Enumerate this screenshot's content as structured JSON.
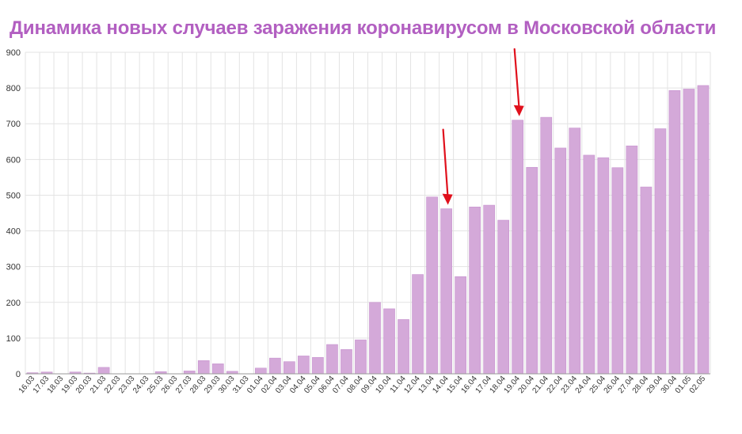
{
  "title": "Динамика новых случаев заражения коронавирусом в Московской области",
  "colors": {
    "title": "#b25fc1",
    "bar": "#d4a9d9",
    "bar_stroke": "#c793cf",
    "arrow": "#e0101c",
    "grid": "#e3e3e3",
    "axis": "#999999"
  },
  "chart_data": {
    "type": "bar",
    "title": "Динамика новых случаев заражения коронавирусом в Московской области",
    "xlabel": "",
    "ylabel": "",
    "ylim": [
      0,
      900
    ],
    "yticks": [
      0,
      100,
      200,
      300,
      400,
      500,
      600,
      700,
      800,
      900
    ],
    "grid": true,
    "categories": [
      "16.03",
      "17.03",
      "18.03",
      "19.03",
      "20.03",
      "21.03",
      "22.03",
      "23.03",
      "24.03",
      "25.03",
      "26.03",
      "27.03",
      "28.03",
      "29.03",
      "30.03",
      "31.03",
      "01.04",
      "02.04",
      "03.04",
      "04.04",
      "05.04",
      "06.04",
      "07.04",
      "08.04",
      "09.04",
      "10.04",
      "11.04",
      "12.04",
      "13.04",
      "14.04",
      "15.04",
      "16.04",
      "17.04",
      "18.04",
      "19.04",
      "20.04",
      "21.04",
      "22.04",
      "23.04",
      "24.04",
      "25.04",
      "26.04",
      "27.04",
      "28.04",
      "29.04",
      "30.04",
      "01.05",
      "02.05"
    ],
    "values": [
      3,
      5,
      0,
      5,
      2,
      18,
      0,
      0,
      0,
      6,
      0,
      8,
      37,
      28,
      7,
      0,
      16,
      44,
      34,
      50,
      46,
      82,
      68,
      95,
      200,
      182,
      152,
      278,
      495,
      462,
      272,
      467,
      472,
      430,
      710,
      578,
      718,
      632,
      688,
      612,
      605,
      577,
      638,
      523,
      686,
      793,
      797,
      807
    ],
    "annotations": [
      {
        "type": "arrow",
        "target_category": "14.04"
      },
      {
        "type": "arrow",
        "target_category": "19.04"
      }
    ]
  }
}
